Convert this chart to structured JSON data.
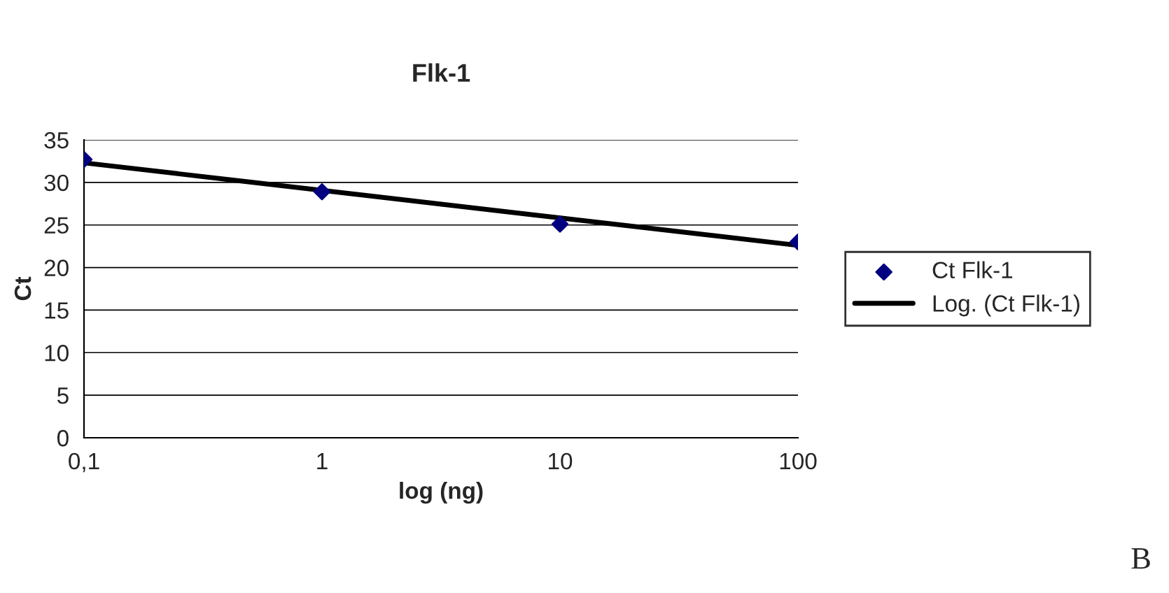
{
  "chart_data": {
    "type": "scatter",
    "title": "Flk-1",
    "xlabel": "log (ng)",
    "ylabel": "Ct",
    "log": "x",
    "xlim": [
      0.1,
      100
    ],
    "xticks": [
      {
        "value": 0.1,
        "label": "0,1"
      },
      1,
      10,
      100
    ],
    "ylim": [
      0,
      35
    ],
    "yticks": [
      0,
      5,
      10,
      15,
      20,
      25,
      30,
      35
    ],
    "grid": "y",
    "legend": "right",
    "series": [
      {
        "name": "Ct Flk-1",
        "type": "scatter",
        "color": "#000080",
        "marker": "diamond",
        "x": [
          0.1,
          1,
          10,
          100
        ],
        "values": [
          32.7,
          28.9,
          25.1,
          23.0
        ]
      },
      {
        "name": "Log. (Ct Flk-1)",
        "type": "line",
        "color": "#000000",
        "marker": "none",
        "line_style": "solid",
        "x": [
          0.1,
          100
        ],
        "values": [
          32.3,
          22.6
        ]
      }
    ],
    "annotations": [
      "B"
    ]
  }
}
